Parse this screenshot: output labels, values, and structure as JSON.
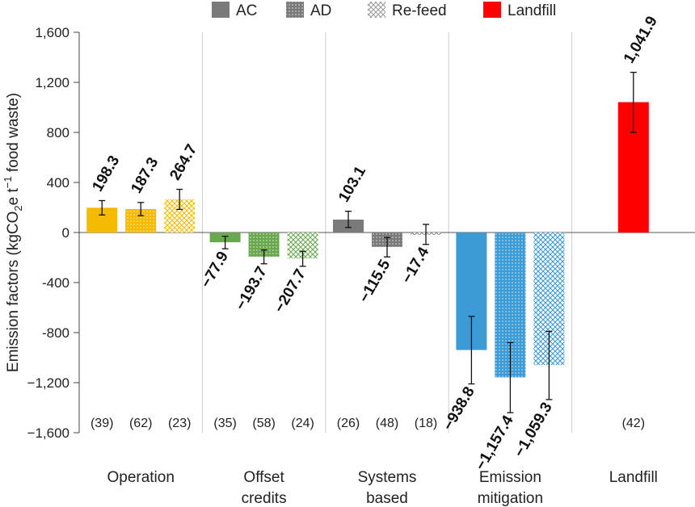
{
  "chart_data": {
    "type": "bar",
    "ylabel": "Emission factors (kgCO2e t-1 food waste)",
    "ylim": [
      -1600,
      1600
    ],
    "yticks": [
      -1600,
      -1200,
      -800,
      -400,
      0,
      400,
      800,
      1200,
      1600
    ],
    "ytick_labels": [
      "−1,600",
      "−1,200",
      "-800",
      "-400",
      "0",
      "400",
      "800",
      "1,200",
      "1,600"
    ],
    "legend": {
      "placement": "top",
      "entries": [
        {
          "name": "AC",
          "pattern": "solid",
          "color": "#7a7a7a"
        },
        {
          "name": "AD",
          "pattern": "dots",
          "color": "#7a7a7a"
        },
        {
          "name": "Re-feed",
          "pattern": "cross",
          "color": "#bdbdbd"
        },
        {
          "name": "Landfill",
          "pattern": "solid",
          "color": "#ff0000"
        }
      ]
    },
    "groups": [
      {
        "name": "Operation",
        "color": "#f5bb00",
        "bars": [
          {
            "series": "AC",
            "value": 198.3,
            "label": "198.3",
            "err_low": 140,
            "err_high": 255,
            "n": "(39)"
          },
          {
            "series": "AD",
            "value": 187.3,
            "label": "187.3",
            "err_low": 135,
            "err_high": 240,
            "n": "(62)"
          },
          {
            "series": "Re-feed",
            "value": 264.7,
            "label": "264.7",
            "err_low": 185,
            "err_high": 345,
            "n": "(23)"
          }
        ]
      },
      {
        "name": "Offset credits",
        "color": "#6aa84f",
        "bars": [
          {
            "series": "AC",
            "value": -77.9,
            "label": "−77.9",
            "err_low": -130,
            "err_high": -30,
            "n": "(35)"
          },
          {
            "series": "AD",
            "value": -193.7,
            "label": "−193.7",
            "err_low": -250,
            "err_high": -140,
            "n": "(58)"
          },
          {
            "series": "Re-feed",
            "value": -207.7,
            "label": "−207.7",
            "err_low": -270,
            "err_high": -150,
            "n": "(24)"
          }
        ]
      },
      {
        "name": "Systems based",
        "color": "#7a7a7a",
        "bars": [
          {
            "series": "AC",
            "value": 103.1,
            "label": "103.1",
            "err_low": 40,
            "err_high": 170,
            "n": "(26)"
          },
          {
            "series": "AD",
            "value": -115.5,
            "label": "−115.5",
            "err_low": -195,
            "err_high": -40,
            "n": "(48)"
          },
          {
            "series": "Re-feed",
            "value": -17.4,
            "label": "−17.4",
            "err_low": -95,
            "err_high": 65,
            "n": "(18)"
          }
        ]
      },
      {
        "name": "Emission mitigation",
        "color": "#3c9ad6",
        "bars": [
          {
            "series": "AC",
            "value": -938.8,
            "label": "−938.8",
            "err_low": -1210,
            "err_high": -670,
            "n": ""
          },
          {
            "series": "AD",
            "value": -1157.4,
            "label": "−1,157.4",
            "err_low": -1440,
            "err_high": -880,
            "n": ""
          },
          {
            "series": "Re-feed",
            "value": -1059.3,
            "label": "−1,059.3",
            "err_low": -1335,
            "err_high": -790,
            "n": ""
          }
        ]
      },
      {
        "name": "Landfill",
        "color": "#ff0000",
        "bars": [
          {
            "series": "Landfill",
            "value": 1041.9,
            "label": "1,041.9",
            "err_low": 800,
            "err_high": 1280,
            "n": "(42)"
          }
        ]
      }
    ],
    "group_label_lines": [
      [
        "Operation"
      ],
      [
        "Offset",
        "credits"
      ],
      [
        "Systems",
        "based"
      ],
      [
        "Emission",
        "mitigation"
      ],
      [
        "Landfill"
      ]
    ]
  }
}
